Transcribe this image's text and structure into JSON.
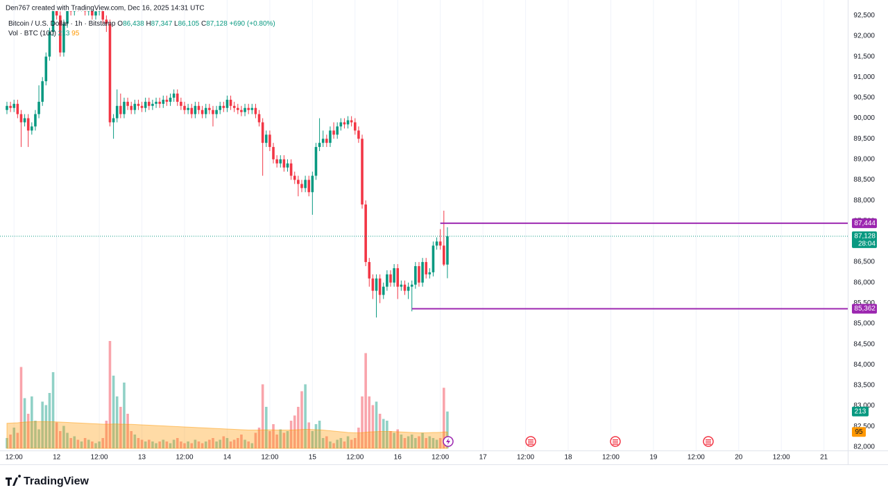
{
  "chart_data": {
    "type": "candlestick",
    "header": "Den767 created with TradingView.com, Dec 16, 2025 14:31 UTC",
    "legend": {
      "symbol": "Bitcoin / U.S. Dollar · 1h · Bitstamp",
      "ohlc": [
        {
          "key": "O",
          "value": "86,438"
        },
        {
          "key": "H",
          "value": "87,347"
        },
        {
          "key": "L",
          "value": "86,105"
        },
        {
          "key": "C",
          "value": "87,128"
        }
      ],
      "change": "+690 (+0.80%)",
      "volume_title": "Vol · BTC (100)"
    },
    "brand": "TradingView",
    "up_color": "#089981",
    "down_color": "#f23645",
    "ma_color": "#ff9800",
    "line_color": "#9c27b0",
    "open": [
      90200,
      90300,
      90250,
      90350,
      90100,
      89900,
      90000,
      89700,
      89800,
      90100,
      90400,
      90900,
      91500,
      92100,
      92700,
      92500,
      91600,
      92300,
      92800,
      92600,
      92900,
      92700,
      92800,
      92600,
      92700,
      92500,
      92600,
      92700,
      92400,
      92300,
      89900,
      90000,
      90300,
      90100,
      90400,
      90300,
      90200,
      90350,
      90300,
      90250,
      90400,
      90300,
      90350,
      90400,
      90350,
      90450,
      90400,
      90500,
      90600,
      90400,
      90300,
      90200,
      90250,
      90100,
      90300,
      90200,
      90100,
      90250,
      90200,
      90100,
      90200,
      90300,
      90250,
      90450,
      90300,
      90250,
      90200,
      90150,
      90250,
      90200,
      90250,
      90100,
      89900,
      89400,
      89600,
      89300,
      89000,
      88900,
      89000,
      88800,
      88900,
      88600,
      88500,
      88400,
      88300,
      88500,
      88200,
      88600,
      89300,
      89400,
      89500,
      89400,
      89700,
      89600,
      89800,
      89900,
      89850,
      89950,
      89900,
      89700,
      89500,
      87900,
      86500,
      86100,
      85800,
      86100,
      85700,
      85900,
      86200,
      86000,
      86350,
      85900,
      85950,
      85800,
      85900,
      85950,
      86400,
      86000,
      86500,
      86200,
      86250,
      86900,
      87000,
      86900,
      86438
    ],
    "high": [
      90400,
      90400,
      90450,
      90450,
      90200,
      90100,
      90100,
      89900,
      90200,
      90800,
      91000,
      91600,
      92200,
      92800,
      92800,
      92600,
      92400,
      92900,
      92900,
      93000,
      93000,
      92900,
      92900,
      92800,
      92800,
      92700,
      92800,
      92800,
      92500,
      92400,
      90100,
      90700,
      90600,
      90500,
      90500,
      90400,
      90450,
      90450,
      90400,
      90500,
      90500,
      90450,
      90500,
      90500,
      90550,
      90550,
      90600,
      90700,
      90700,
      90500,
      90400,
      90350,
      90350,
      90400,
      90400,
      90300,
      90350,
      90350,
      90300,
      90300,
      90400,
      90400,
      90550,
      90550,
      90400,
      90350,
      90300,
      90350,
      90350,
      90350,
      90350,
      90200,
      90000,
      89700,
      89700,
      89400,
      89100,
      89100,
      89100,
      89000,
      89000,
      88700,
      88600,
      88500,
      88600,
      88600,
      88700,
      89400,
      90000,
      89700,
      89600,
      89800,
      89900,
      89900,
      90000,
      90000,
      90050,
      90050,
      90000,
      89800,
      89600,
      88000,
      86600,
      86200,
      86200,
      86200,
      86000,
      86300,
      86300,
      86450,
      86450,
      86050,
      86050,
      86000,
      86050,
      86500,
      86500,
      86600,
      86600,
      86350,
      87000,
      87100,
      87300,
      87750,
      87347
    ],
    "low": [
      90100,
      90150,
      90150,
      90000,
      89300,
      89800,
      89300,
      89600,
      89700,
      90000,
      90300,
      90800,
      91400,
      92000,
      92400,
      91500,
      91500,
      92200,
      92500,
      92500,
      92600,
      92600,
      92500,
      92500,
      92400,
      92400,
      92500,
      92300,
      92100,
      89800,
      89500,
      89900,
      90000,
      90000,
      90200,
      90100,
      90100,
      90200,
      90150,
      90150,
      90200,
      90200,
      90250,
      90250,
      90250,
      90300,
      90300,
      90400,
      90300,
      90200,
      90100,
      90100,
      90000,
      90000,
      90100,
      90000,
      90000,
      90100,
      89800,
      90000,
      90100,
      90150,
      90150,
      90200,
      90150,
      90100,
      90050,
      90050,
      90100,
      90100,
      90000,
      89800,
      88600,
      89300,
      89200,
      88900,
      88800,
      88800,
      88700,
      88700,
      88500,
      88400,
      88100,
      88200,
      88200,
      88100,
      87650,
      88500,
      89200,
      89300,
      89300,
      89300,
      89500,
      89500,
      89700,
      89750,
      89750,
      89800,
      89600,
      89400,
      87800,
      86400,
      85900,
      85600,
      85150,
      85500,
      85600,
      85800,
      85900,
      85900,
      85600,
      85800,
      85700,
      85600,
      85300,
      85850,
      85900,
      85900,
      86100,
      86100,
      86150,
      86800,
      86800,
      86400,
      86105
    ],
    "close": [
      90300,
      90250,
      90350,
      90100,
      89900,
      90000,
      89700,
      89800,
      90100,
      90400,
      90900,
      91500,
      92100,
      92700,
      92500,
      91600,
      92300,
      92800,
      92600,
      92900,
      92700,
      92800,
      92600,
      92700,
      92500,
      92600,
      92700,
      92400,
      92300,
      89900,
      90000,
      90300,
      90100,
      90400,
      90300,
      90200,
      90350,
      90300,
      90250,
      90400,
      90300,
      90350,
      90400,
      90350,
      90450,
      90400,
      90500,
      90600,
      90400,
      90300,
      90200,
      90250,
      90100,
      90300,
      90200,
      90100,
      90250,
      90200,
      90100,
      90200,
      90300,
      90250,
      90450,
      90300,
      90250,
      90200,
      90150,
      90250,
      90200,
      90250,
      90100,
      89900,
      89400,
      89600,
      89300,
      89000,
      88900,
      89000,
      88800,
      88900,
      88600,
      88500,
      88400,
      88300,
      88500,
      88200,
      88600,
      89300,
      89400,
      89500,
      89400,
      89700,
      89600,
      89800,
      89900,
      89850,
      89950,
      89900,
      89700,
      89500,
      87900,
      86500,
      86100,
      85800,
      86100,
      85700,
      85900,
      86200,
      86000,
      86350,
      85900,
      85950,
      85800,
      85900,
      85950,
      86400,
      86000,
      86500,
      86200,
      86250,
      86900,
      87000,
      86900,
      86438,
      87128
    ],
    "volume": [
      60,
      80,
      120,
      90,
      470,
      290,
      200,
      300,
      160,
      110,
      270,
      250,
      320,
      440,
      150,
      100,
      130,
      90,
      60,
      70,
      50,
      40,
      60,
      50,
      40,
      30,
      40,
      60,
      160,
      620,
      420,
      300,
      240,
      380,
      200,
      100,
      80,
      60,
      50,
      40,
      50,
      40,
      30,
      40,
      50,
      40,
      30,
      50,
      60,
      40,
      30,
      40,
      30,
      50,
      40,
      30,
      40,
      50,
      60,
      40,
      50,
      70,
      60,
      40,
      50,
      60,
      80,
      50,
      40,
      30,
      90,
      120,
      370,
      240,
      100,
      140,
      80,
      110,
      90,
      100,
      160,
      190,
      240,
      330,
      370,
      150,
      100,
      140,
      160,
      60,
      70,
      40,
      30,
      50,
      60,
      40,
      70,
      50,
      60,
      120,
      300,
      550,
      300,
      250,
      270,
      200,
      170,
      160,
      100,
      90,
      110,
      80,
      60,
      70,
      80,
      60,
      70,
      90,
      60,
      70,
      60,
      50,
      60,
      350,
      213
    ],
    "volume_ma": [
      145,
      146,
      147,
      148,
      150,
      152,
      153,
      154,
      155,
      155,
      155,
      155,
      154,
      154,
      153,
      152,
      151,
      150,
      149,
      148,
      147,
      146,
      145,
      144,
      143,
      142,
      141,
      140,
      140,
      140,
      141,
      141,
      140,
      140,
      139,
      139,
      138,
      137,
      136,
      135,
      134,
      133,
      132,
      131,
      130,
      129,
      128,
      127,
      126,
      125,
      124,
      123,
      122,
      121,
      120,
      119,
      118,
      117,
      116,
      115,
      114,
      113,
      112,
      111,
      110,
      109,
      108,
      107,
      106,
      106,
      106,
      106,
      107,
      107,
      107,
      107,
      106,
      106,
      106,
      106,
      106,
      107,
      108,
      109,
      110,
      110,
      109,
      108,
      107,
      106,
      104,
      102,
      100,
      98,
      96,
      94,
      92,
      91,
      90,
      90,
      91,
      93,
      95,
      96,
      97,
      98,
      98,
      98,
      98,
      97,
      96,
      95,
      94,
      93,
      92,
      91,
      90,
      90,
      90,
      91,
      92,
      92,
      93,
      95,
      95
    ],
    "last_price_label": "87,128",
    "countdown": "28:04",
    "price_lines": [
      {
        "value": 87444,
        "label": "87,444",
        "from": 122
      },
      {
        "value": 85362,
        "label": "85,362",
        "from": 114
      }
    ],
    "xlim": [
      -1.95,
      236.7
    ],
    "xticks": [
      {
        "value": 2,
        "label": "12:00"
      },
      {
        "value": 14,
        "label": "12"
      },
      {
        "value": 26,
        "label": "12:00"
      },
      {
        "value": 38,
        "label": "13"
      },
      {
        "value": 50,
        "label": "12:00"
      },
      {
        "value": 62,
        "label": "14"
      },
      {
        "value": 74,
        "label": "12:00"
      },
      {
        "value": 86,
        "label": "15"
      },
      {
        "value": 98,
        "label": "12:00"
      },
      {
        "value": 110,
        "label": "16"
      },
      {
        "value": 122,
        "label": "12:00"
      },
      {
        "value": 134,
        "label": "17"
      },
      {
        "value": 146,
        "label": "12:00"
      },
      {
        "value": 158,
        "label": "18"
      },
      {
        "value": 170,
        "label": "12:00"
      },
      {
        "value": 182,
        "label": "19"
      },
      {
        "value": 194,
        "label": "12:00"
      },
      {
        "value": 206,
        "label": "20"
      },
      {
        "value": 218,
        "label": "12:00"
      },
      {
        "value": 230,
        "label": "21"
      }
    ],
    "ylim": [
      81745,
      92624
    ],
    "yticks": [
      {
        "value": 82000,
        "label": "82,000"
      },
      {
        "value": 82500,
        "label": "82,500"
      },
      {
        "value": 83000,
        "label": "83,000"
      },
      {
        "value": 83500,
        "label": "83,500"
      },
      {
        "value": 84000,
        "label": "84,000"
      },
      {
        "value": 84500,
        "label": "84,500"
      },
      {
        "value": 85000,
        "label": "85,000"
      },
      {
        "value": 85500,
        "label": "85,500"
      },
      {
        "value": 86000,
        "label": "86,000"
      },
      {
        "value": 86500,
        "label": "86,500"
      },
      {
        "value": 87000,
        "label": "87,000"
      },
      {
        "value": 87500,
        "label": "87,500"
      },
      {
        "value": 88000,
        "label": "88,000"
      },
      {
        "value": 88500,
        "label": "88,500"
      },
      {
        "value": 89000,
        "label": "89,000"
      },
      {
        "value": 89500,
        "label": "89,500"
      },
      {
        "value": 90000,
        "label": "90,000"
      },
      {
        "value": 90500,
        "label": "90,500"
      },
      {
        "value": 91000,
        "label": "91,000"
      },
      {
        "value": 91500,
        "label": "91,500"
      },
      {
        "value": 92000,
        "label": "92,000"
      },
      {
        "value": 92500,
        "label": "92,500"
      }
    ],
    "volume_ylim": [
      0,
      2400
    ],
    "grid": true
  }
}
